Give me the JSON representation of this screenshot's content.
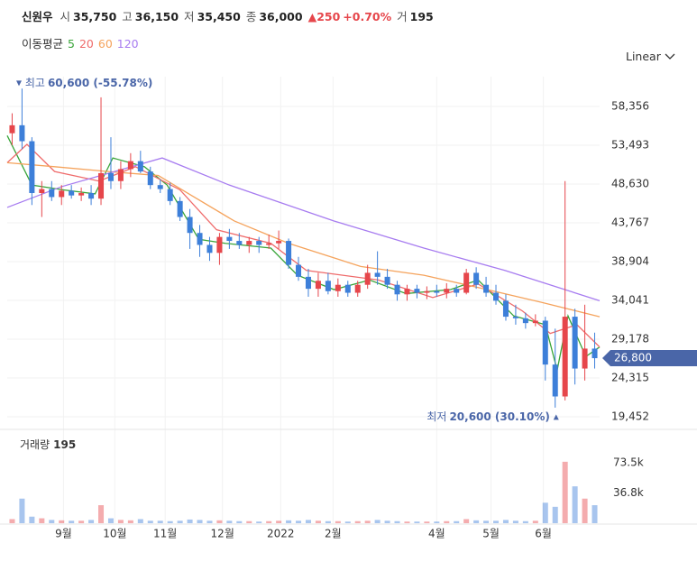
{
  "header": {
    "name": "신원우",
    "items": [
      {
        "label": "시",
        "value": "35,750"
      },
      {
        "label": "고",
        "value": "36,150"
      },
      {
        "label": "저",
        "value": "35,450"
      },
      {
        "label": "종",
        "value": "36,000"
      }
    ],
    "change": "▲250",
    "change_pct": "+0.70%",
    "volume_label": "거",
    "volume_value": "195"
  },
  "ma_legend": {
    "title": "이동평균"
  },
  "scale_menu": "Linear",
  "chart_data": {
    "type": "candlestick",
    "up_color": "#e6464b",
    "down_color": "#3d7fd9",
    "open": [
      55000,
      56000,
      54000,
      47500,
      48000,
      47000,
      47800,
      47200,
      47500,
      46800,
      50000,
      49000,
      50500,
      51500,
      50200,
      48500,
      48000,
      46500,
      44500,
      42500,
      41000,
      40000,
      42000,
      41500,
      41000,
      41500,
      41000,
      41200,
      41500,
      38500,
      37000,
      35500,
      36500,
      35200,
      36000,
      35000,
      36000,
      37500,
      37000,
      36000,
      34800,
      35500,
      35000,
      35200,
      35000,
      35500,
      35000,
      37500,
      36000,
      35000,
      34000,
      32000,
      31800,
      31200,
      31500,
      26000,
      22000,
      32000,
      25500,
      28000
    ],
    "high": [
      57500,
      60600,
      54500,
      49000,
      49000,
      48500,
      48500,
      48200,
      48500,
      59500,
      54500,
      51500,
      52500,
      52800,
      50800,
      49200,
      48800,
      47000,
      45500,
      43500,
      42000,
      42500,
      43000,
      42500,
      42000,
      42000,
      42300,
      42800,
      41800,
      39500,
      38000,
      37500,
      37500,
      36800,
      36500,
      36500,
      38500,
      40200,
      38000,
      36500,
      36000,
      36000,
      35800,
      36000,
      36200,
      36000,
      38000,
      38200,
      37000,
      36000,
      34800,
      33500,
      32500,
      32300,
      32000,
      30500,
      49000,
      33000,
      33500,
      30000
    ],
    "low": [
      53500,
      53000,
      46000,
      44500,
      46500,
      46000,
      46800,
      46500,
      46000,
      46000,
      48000,
      48000,
      49500,
      50000,
      48000,
      47500,
      46000,
      44000,
      40500,
      39500,
      39000,
      38500,
      40500,
      40500,
      40000,
      40000,
      40500,
      40500,
      38000,
      36500,
      34500,
      34500,
      34800,
      34500,
      34500,
      34500,
      35500,
      36000,
      35500,
      34000,
      34000,
      34300,
      34200,
      34500,
      34300,
      34500,
      34800,
      35500,
      34500,
      33500,
      31500,
      31000,
      30500,
      30800,
      24000,
      20600,
      21500,
      23500,
      24000,
      25500
    ],
    "close": [
      56000,
      54000,
      47500,
      48000,
      47000,
      47800,
      47200,
      47500,
      46800,
      50000,
      49000,
      50500,
      51500,
      50200,
      48500,
      48000,
      46500,
      44500,
      42500,
      41000,
      40000,
      42000,
      41500,
      41000,
      41500,
      41000,
      41200,
      41500,
      38500,
      37000,
      35500,
      36500,
      35200,
      36000,
      35000,
      36000,
      37500,
      37000,
      36000,
      34800,
      35500,
      35000,
      35200,
      35000,
      35500,
      35000,
      37500,
      36000,
      35000,
      34000,
      32000,
      31800,
      31200,
      31500,
      26000,
      22000,
      32000,
      25500,
      28000,
      26800
    ],
    "ylim": [
      18550,
      62090
    ],
    "yticks": [
      {
        "value": 19452,
        "label": "19,452"
      },
      {
        "value": 24315,
        "label": "24,315"
      },
      {
        "value": 29178,
        "label": "29,178"
      },
      {
        "value": 34041,
        "label": "34,041"
      },
      {
        "value": 38904,
        "label": "38,904"
      },
      {
        "value": 43767,
        "label": "43,767"
      },
      {
        "value": 48630,
        "label": "48,630"
      },
      {
        "value": 53493,
        "label": "53,493"
      },
      {
        "value": 58356,
        "label": "58,356"
      }
    ],
    "xlim": [
      -0.5,
      59.5
    ],
    "xticks": [
      {
        "value": 5.2,
        "label": "9월"
      },
      {
        "value": 10.4,
        "label": "10월"
      },
      {
        "value": 15.5,
        "label": "11월"
      },
      {
        "value": 21.3,
        "label": "12월"
      },
      {
        "value": 27.2,
        "label": "2022"
      },
      {
        "value": 32.5,
        "label": "2월"
      },
      {
        "value": 43,
        "label": "4월"
      },
      {
        "value": 48.5,
        "label": "5월"
      },
      {
        "value": 53.8,
        "label": "6월"
      }
    ],
    "moving_averages": [
      {
        "name": "5",
        "color": "#3aa53a",
        "x": [
          -0.5,
          2,
          5.2,
          8.4,
          10.2,
          13.4,
          15.7,
          18.9,
          21.6,
          26.2,
          28.9,
          32.6,
          36.2,
          39.9,
          44.4,
          47.2,
          50.8,
          54,
          55.2,
          56.3,
          58.1,
          59.5
        ],
        "values": [
          54700,
          48500,
          47900,
          47400,
          51900,
          50800,
          48500,
          41700,
          41200,
          40600,
          37200,
          35400,
          36600,
          34900,
          35400,
          36600,
          32100,
          31000,
          25300,
          32100,
          27000,
          28200
        ]
      },
      {
        "name": "20",
        "color": "#ef6b6b",
        "x": [
          -0.5,
          1.5,
          4.3,
          8.8,
          12.5,
          17,
          20.7,
          26.2,
          29.8,
          37.1,
          42.6,
          47.2,
          51.7,
          54.5,
          57.2,
          59.5
        ],
        "values": [
          51300,
          53600,
          50200,
          49000,
          50800,
          47900,
          42900,
          41200,
          37800,
          36600,
          34400,
          36100,
          32700,
          29900,
          31000,
          28200
        ]
      },
      {
        "name": "60",
        "color": "#f5a35c",
        "x": [
          -0.5,
          4.3,
          9.7,
          14.8,
          17.9,
          22.5,
          28,
          35.3,
          41.7,
          48.1,
          53.6,
          59.5
        ],
        "values": [
          51300,
          50800,
          50200,
          49700,
          47400,
          44000,
          41200,
          38300,
          37200,
          35400,
          33800,
          32000
        ]
      },
      {
        "name": "120",
        "color": "#a77cf0",
        "x": [
          -0.5,
          5,
          15.2,
          22,
          32.6,
          41.7,
          49.9,
          59.5
        ],
        "values": [
          45700,
          48300,
          51900,
          48500,
          44000,
          40600,
          37800,
          34000
        ]
      }
    ],
    "high_annotation": {
      "label": "최고",
      "text": "60,600 (-55.78%)"
    },
    "low_annotation": {
      "label": "최저",
      "text": "20,600 (30.10%)"
    },
    "last_price_label": "26,800",
    "volume": {
      "title": "거래량",
      "current": "195",
      "ylim": [
        0,
        104600
      ],
      "yticks": [
        {
          "value": 36800,
          "label": "36.8k"
        },
        {
          "value": 73500,
          "label": "73.5k"
        }
      ],
      "values": [
        5000,
        30000,
        8000,
        6000,
        4000,
        3500,
        3000,
        3000,
        4000,
        22000,
        6000,
        4000,
        3500,
        5000,
        3000,
        3000,
        2500,
        3000,
        4500,
        4000,
        3000,
        3500,
        3000,
        2500,
        2500,
        2000,
        2500,
        3000,
        3500,
        3000,
        4000,
        3000,
        2500,
        2500,
        2000,
        2500,
        3000,
        4000,
        3000,
        2500,
        2000,
        2000,
        2000,
        2000,
        2500,
        2500,
        5000,
        3500,
        3000,
        3000,
        4000,
        3000,
        2500,
        3000,
        25000,
        20000,
        75000,
        45000,
        30000,
        22000
      ]
    }
  }
}
